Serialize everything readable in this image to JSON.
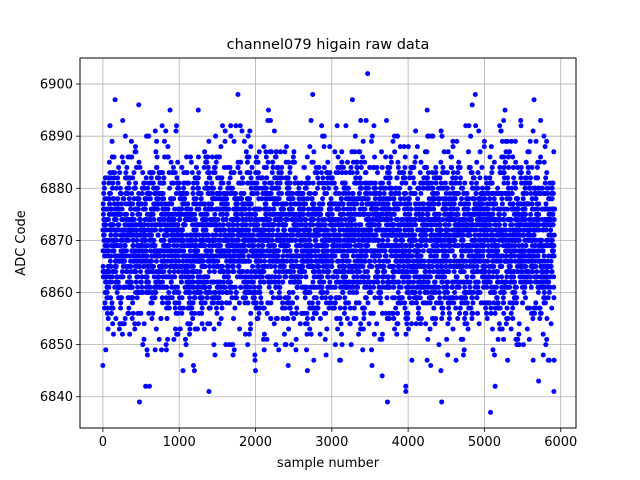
{
  "chart_data": {
    "type": "scatter",
    "title": "channel079 higain raw data",
    "xlabel": "sample number",
    "ylabel": "ADC Code",
    "xlim": [
      -300,
      6200
    ],
    "ylim": [
      6834,
      6905
    ],
    "xticks": [
      0,
      1000,
      2000,
      3000,
      4000,
      5000,
      6000
    ],
    "yticks": [
      6840,
      6850,
      6860,
      6870,
      6880,
      6890,
      6900
    ],
    "grid": true,
    "marker_color": "#0000ff",
    "n_points": 5920,
    "central_value": 6870,
    "visible_extremes": [
      {
        "x": 3470,
        "y": 6902
      },
      {
        "x": 1770,
        "y": 6898
      },
      {
        "x": 2750,
        "y": 6898
      },
      {
        "x": 4880,
        "y": 6898
      },
      {
        "x": 160,
        "y": 6897
      },
      {
        "x": 3270,
        "y": 6897
      },
      {
        "x": 4840,
        "y": 6896
      },
      {
        "x": 5650,
        "y": 6897
      },
      {
        "x": 470,
        "y": 6896
      },
      {
        "x": 2170,
        "y": 6895
      },
      {
        "x": 5270,
        "y": 6895
      },
      {
        "x": 880,
        "y": 6895
      },
      {
        "x": 1250,
        "y": 6895
      },
      {
        "x": 4250,
        "y": 6895
      },
      {
        "x": 5080,
        "y": 6837
      },
      {
        "x": 480,
        "y": 6839
      },
      {
        "x": 3730,
        "y": 6839
      },
      {
        "x": 4440,
        "y": 6839
      },
      {
        "x": 1390,
        "y": 6841
      },
      {
        "x": 3970,
        "y": 6841
      },
      {
        "x": 5910,
        "y": 6841
      },
      {
        "x": 5140,
        "y": 6842
      },
      {
        "x": 560,
        "y": 6842
      },
      {
        "x": 610,
        "y": 6842
      },
      {
        "x": 3970,
        "y": 6842
      },
      {
        "x": 5710,
        "y": 6843
      },
      {
        "x": 1050,
        "y": 6845
      },
      {
        "x": 1200,
        "y": 6845
      },
      {
        "x": 2000,
        "y": 6845
      },
      {
        "x": 2680,
        "y": 6845
      },
      {
        "x": 3660,
        "y": 6844
      },
      {
        "x": 0,
        "y": 6846
      },
      {
        "x": 4430,
        "y": 6845
      }
    ]
  }
}
